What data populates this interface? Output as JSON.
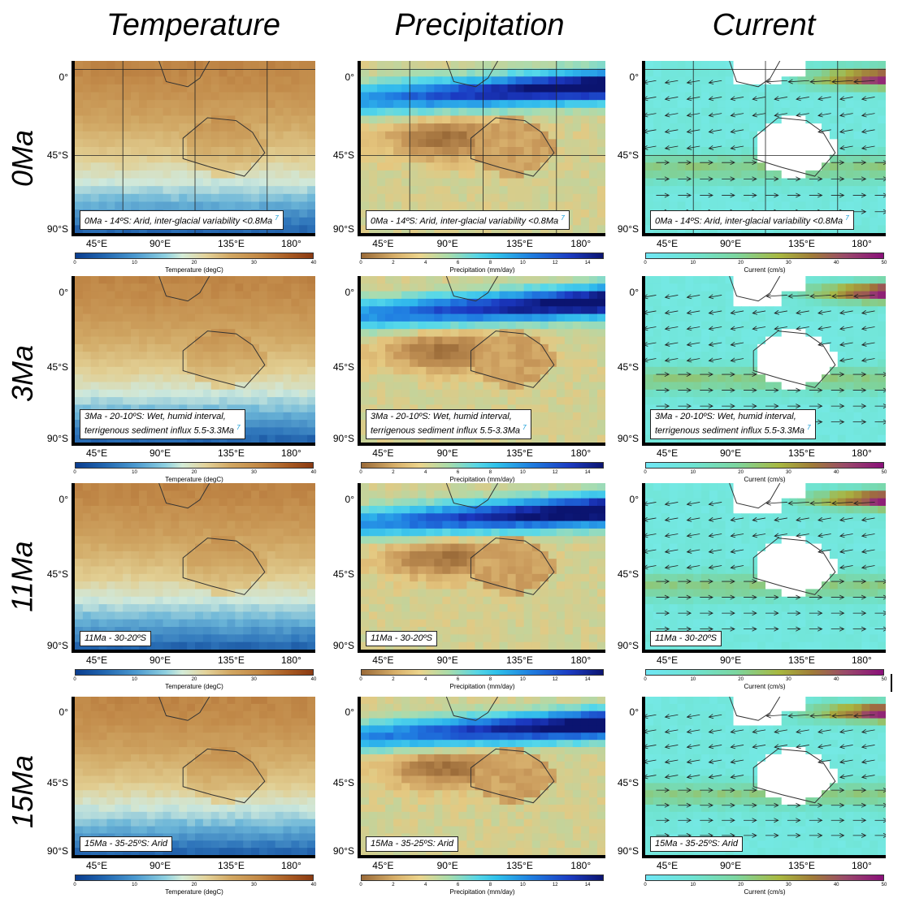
{
  "columns": [
    "Temperature",
    "Precipitation",
    "Current"
  ],
  "rows": [
    "0Ma",
    "3Ma",
    "11Ma",
    "15Ma"
  ],
  "axes": {
    "y_ticks": [
      "0°",
      "45°S",
      "90°S"
    ],
    "x_ticks": [
      "45°E",
      "90°E",
      "135°E",
      "180°"
    ]
  },
  "colorbars": {
    "temperature": {
      "title": "Temperature (degC)",
      "ticks": [
        "0",
        "10",
        "20",
        "30",
        "40"
      ],
      "range": [
        0,
        40
      ]
    },
    "precipitation": {
      "title": "Precipitation (mm/day)",
      "ticks": [
        "0",
        "2",
        "4",
        "6",
        "8",
        "10",
        "12",
        "14"
      ],
      "range": [
        0,
        15
      ]
    },
    "current": {
      "title": "Current (cm/s)",
      "ticks": [
        "0",
        "10",
        "20",
        "30",
        "40",
        "50"
      ],
      "range": [
        0,
        50
      ]
    }
  },
  "captions": [
    {
      "lines": [
        "0Ma - 14ºS: Arid, inter-glacial variability <0.8Ma"
      ],
      "ref": "7"
    },
    {
      "lines": [
        "3Ma - 20-10ºS: Wet, humid interval,",
        "terrigenous sediment influx 5.5-3.3Ma"
      ],
      "ref": "7"
    },
    {
      "lines": [
        "11Ma - 30-20ºS"
      ],
      "ref": ""
    },
    {
      "lines": [
        "15Ma - 35-25ºS: Arid"
      ],
      "ref": ""
    }
  ],
  "colors": {
    "temp_warm": "#c9a25a",
    "temp_cold": "#1f5fa8",
    "prec_dry": "#a8773f",
    "prec_wet": "#1f3ad0",
    "curr_slow": "#6fe6f4",
    "curr_fast": "#8a0f7a"
  }
}
